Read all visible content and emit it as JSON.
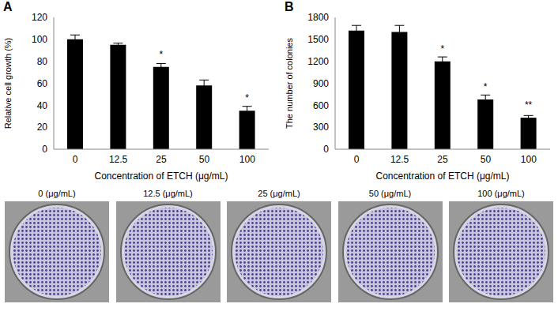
{
  "chart_data": [
    {
      "type": "bar",
      "title": "A",
      "categories": [
        "0",
        "12.5",
        "25",
        "50",
        "100"
      ],
      "values": [
        100,
        95,
        75,
        58,
        35
      ],
      "error": [
        4,
        1.5,
        3,
        5,
        4
      ],
      "color": "#000000",
      "ylim": [
        0,
        120
      ],
      "yticks": [
        0,
        20,
        40,
        60,
        80,
        100,
        120
      ],
      "grid": false,
      "x_label": "Concentration of ETCH (μg/mL)",
      "y_label": "Relative cell growth (%)",
      "annotations": [
        {
          "category": "25",
          "text": "*"
        },
        {
          "category": "100",
          "text": "*"
        }
      ]
    },
    {
      "type": "bar",
      "title": "B",
      "categories": [
        "0",
        "12.5",
        "25",
        "50",
        "100"
      ],
      "values": [
        1620,
        1600,
        1200,
        680,
        430
      ],
      "error": [
        70,
        90,
        60,
        60,
        30
      ],
      "color": "#000000",
      "ylim": [
        0,
        1800
      ],
      "yticks": [
        0,
        300,
        600,
        900,
        1200,
        1500,
        1800
      ],
      "grid": false,
      "x_label": "Concentration of ETCH (μg/mL)",
      "y_label": "The number of colonies",
      "annotations": [
        {
          "category": "25",
          "text": "*"
        },
        {
          "category": "50",
          "text": "*"
        },
        {
          "category": "100",
          "text": "**"
        }
      ]
    }
  ],
  "plates": {
    "labels": [
      "0 (μg/mL)",
      "12.5 (μg/mL)",
      "25 (μg/mL)",
      "50 (μg/mL)",
      "100 (μg/mL)"
    ]
  }
}
